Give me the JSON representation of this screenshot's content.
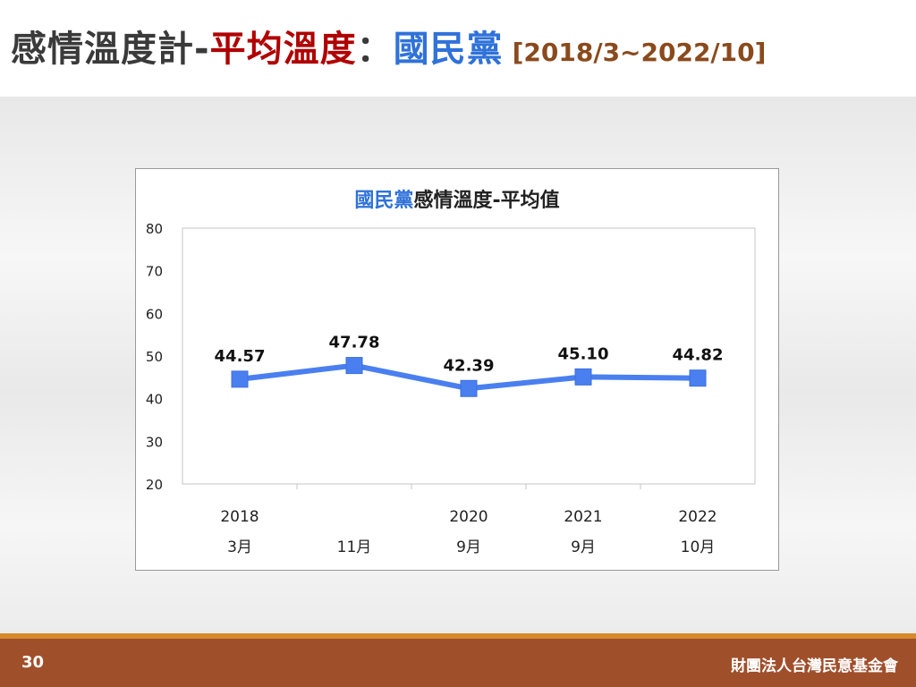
{
  "slide": {
    "title_part1": "感情溫度計-",
    "title_part2": "平均溫度",
    "title_part3": "：",
    "title_part4": "國民黨",
    "title_part5": "[2018/3~2022/10]",
    "page_number": "30",
    "organization": "財團法人台灣民意基金會"
  },
  "colors": {
    "series_blue": "#4a7ff0",
    "title_red": "#b00000",
    "title_blue": "#2f72d9",
    "date_brown": "#8a4a1c",
    "footer_brown": "#a04f2b",
    "footer_orange": "#d78a29"
  },
  "chart_data": {
    "type": "line",
    "title_party": "國民黨",
    "title_rest": "感情溫度-平均值",
    "categories": [
      {
        "year": "2018",
        "month": "3月"
      },
      {
        "year": "",
        "month": "11月"
      },
      {
        "year": "2020",
        "month": "9月"
      },
      {
        "year": "2021",
        "month": "9月"
      },
      {
        "year": "2022",
        "month": "10月"
      }
    ],
    "series": [
      {
        "values": [
          44.57,
          47.78,
          42.39,
          45.1,
          44.82
        ]
      }
    ],
    "value_labels": [
      "44.57",
      "47.78",
      "42.39",
      "45.10",
      "44.82"
    ],
    "ylim": [
      20,
      80
    ],
    "yticks": [
      20,
      30,
      40,
      50,
      60,
      70,
      80
    ],
    "grid": false,
    "legend": "none"
  }
}
